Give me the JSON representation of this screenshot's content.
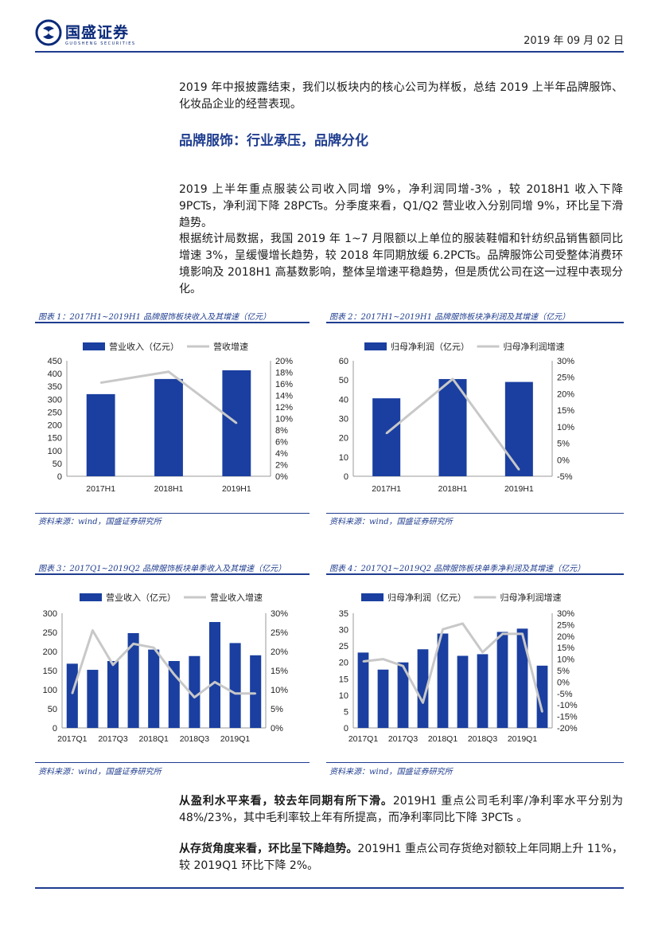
{
  "header": {
    "logo_text": "国盛证券",
    "logo_sub": "GUOSHENG SECURITIES",
    "date": "2019 年 09 月 02 日"
  },
  "paragraphs": {
    "intro": "2019 年中报披露结束，我们以板块内的核心公司为样板，总结 2019 上半年品牌服饰、化妆品企业的经营表现。",
    "section_title": "品牌服饰：行业承压，品牌分化",
    "p1": "2019 上半年重点服装公司收入同增 9%，净利润同增-3% ，较 2018H1 收入下降 9PCTs，净利润下降 28PCTs。分季度来看，Q1/Q2 营业收入分别同增 9%，环比呈下滑趋势。",
    "p2": "根据统计局数据，我国 2019 年 1~7 月限额以上单位的服装鞋帽和针纺织品销售额同比增速 3%，呈缓慢增长趋势，较 2018 年同期放缓 6.2PCTs。品牌服饰公司受整体消费环境影响及 2018H1 高基数影响，整体呈增速平稳趋势，但是质优公司在这一过程中表现分化。",
    "p3_bold": "从盈利水平来看，较去年同期有所下滑。",
    "p3_rest": "2019H1 重点公司毛利率/净利率水平分别为 48%/23%，其中毛利率较上年有所提高，而净利率同比下降 3PCTs 。",
    "p4_bold": "从存货角度来看，环比呈下降趋势。",
    "p4_rest": "2019H1 重点公司存货绝对额较上年同期上升 11%，较 2019Q1 环比下降 2%。"
  },
  "figures": [
    {
      "title": "图表 1：2017H1~2019H1 品牌服饰板块收入及其增速（亿元）",
      "source": "资料来源：wind，国盛证券研究所"
    },
    {
      "title": "图表 2：2017H1~2019H1 品牌服饰板块净利润及其增速（亿元）",
      "source": "资料来源：wind，国盛证券研究所"
    },
    {
      "title": "图表 3：2017Q1~2019Q2 品牌服饰板块单季收入及其增速（亿元）",
      "source": "资料来源：wind，国盛证券研究所"
    },
    {
      "title": "图表 4：2017Q1~2019Q2 品牌服饰板块单季净利润及其增速（亿元）",
      "source": "资料来源：wind，国盛证券研究所"
    }
  ],
  "colors": {
    "bar": "#1a3fa0",
    "line": "#c8c8c8",
    "accent": "#1f3d8f"
  },
  "chart_data": [
    {
      "type": "bar",
      "categories": [
        "2017H1",
        "2018H1",
        "2019H1"
      ],
      "tick_labels": [
        "2017H1",
        "2018H1",
        "2019H1"
      ],
      "series": [
        {
          "name": "营业收入（亿元）",
          "kind": "bar",
          "axis": "left",
          "values": [
            320,
            379,
            413
          ]
        },
        {
          "name": "营收增速",
          "kind": "line",
          "axis": "right",
          "values": [
            16.2,
            18.1,
            9.2
          ]
        }
      ],
      "left_axis": {
        "min": 0,
        "max": 450,
        "ticks": [
          "0",
          "50",
          "100",
          "150",
          "200",
          "250",
          "300",
          "350",
          "400",
          "450"
        ]
      },
      "right_axis": {
        "min": 0,
        "max": 20,
        "ticks": [
          "0%",
          "2%",
          "4%",
          "6%",
          "8%",
          "10%",
          "12%",
          "14%",
          "16%",
          "18%",
          "20%"
        ]
      }
    },
    {
      "type": "bar",
      "categories": [
        "2017H1",
        "2018H1",
        "2019H1"
      ],
      "tick_labels": [
        "2017H1",
        "2018H1",
        "2019H1"
      ],
      "series": [
        {
          "name": "归母净利润（亿元）",
          "kind": "bar",
          "axis": "left",
          "values": [
            40.5,
            50.5,
            49
          ]
        },
        {
          "name": "归母净利润增速",
          "kind": "line",
          "axis": "right",
          "values": [
            8,
            24.5,
            -3
          ]
        }
      ],
      "left_axis": {
        "min": 0,
        "max": 60,
        "ticks": [
          "0",
          "10",
          "20",
          "30",
          "40",
          "50",
          "60"
        ]
      },
      "right_axis": {
        "min": -5,
        "max": 30,
        "ticks": [
          "-5%",
          "0%",
          "5%",
          "10%",
          "15%",
          "20%",
          "25%",
          "30%"
        ]
      }
    },
    {
      "type": "bar",
      "categories": [
        "2017Q1",
        "2017Q2",
        "2017Q3",
        "2017Q4",
        "2018Q1",
        "2018Q2",
        "2018Q3",
        "2018Q4",
        "2019Q1",
        "2019Q2"
      ],
      "tick_labels": [
        "2017Q1",
        "",
        "2017Q3",
        "",
        "2018Q1",
        "",
        "2018Q3",
        "",
        "2019Q1",
        ""
      ],
      "series": [
        {
          "name": "营业收入（亿元）",
          "kind": "bar",
          "axis": "left",
          "values": [
            168,
            152,
            175,
            248,
            205,
            175,
            188,
            277,
            222,
            190
          ]
        },
        {
          "name": "营业收入增速",
          "kind": "line",
          "axis": "right",
          "values": [
            9,
            25.5,
            16.5,
            22,
            21,
            14,
            8,
            12,
            9,
            9
          ]
        }
      ],
      "left_axis": {
        "min": 0,
        "max": 300,
        "ticks": [
          "0",
          "50",
          "100",
          "150",
          "200",
          "250",
          "300"
        ]
      },
      "right_axis": {
        "min": 0,
        "max": 30,
        "ticks": [
          "0%",
          "5%",
          "10%",
          "15%",
          "20%",
          "25%",
          "30%"
        ]
      }
    },
    {
      "type": "bar",
      "categories": [
        "2017Q1",
        "2017Q2",
        "2017Q3",
        "2017Q4",
        "2018Q1",
        "2018Q2",
        "2018Q3",
        "2018Q4",
        "2019Q1",
        "2019Q2"
      ],
      "tick_labels": [
        "2017Q1",
        "",
        "2017Q3",
        "",
        "2018Q1",
        "",
        "2018Q3",
        "",
        "2019Q1",
        ""
      ],
      "series": [
        {
          "name": "归母净利润（亿元）",
          "kind": "bar",
          "axis": "left",
          "values": [
            23,
            17.8,
            20,
            24,
            28.8,
            22,
            22.5,
            29.3,
            30.3,
            19
          ]
        },
        {
          "name": "归母净利润增速",
          "kind": "line",
          "axis": "right",
          "values": [
            9,
            10,
            7,
            -9,
            23,
            25.5,
            13,
            21,
            21,
            -13
          ]
        }
      ],
      "left_axis": {
        "min": 0,
        "max": 35,
        "ticks": [
          "0",
          "5",
          "10",
          "15",
          "20",
          "25",
          "30",
          "35"
        ]
      },
      "right_axis": {
        "min": -20,
        "max": 30,
        "ticks": [
          "-20%",
          "-15%",
          "-10%",
          "-5%",
          "0%",
          "5%",
          "10%",
          "15%",
          "20%",
          "25%",
          "30%"
        ]
      }
    }
  ]
}
